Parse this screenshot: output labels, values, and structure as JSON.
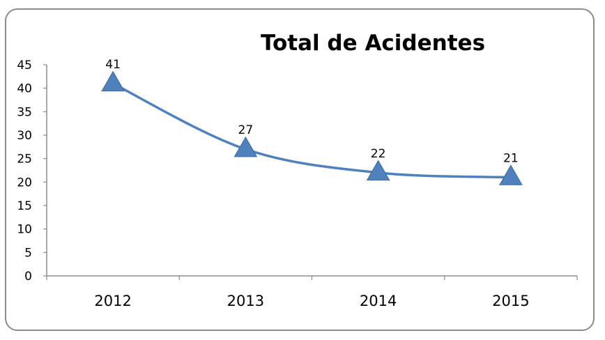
{
  "chart_data": {
    "type": "line",
    "title": "Total de Acidentes",
    "categories": [
      "2012",
      "2013",
      "2014",
      "2015"
    ],
    "series": [
      {
        "values": [
          41,
          27,
          22,
          21
        ],
        "data_labels": [
          "41",
          "27",
          "22",
          "21"
        ],
        "color": "#4f81bd",
        "marker": "triangle",
        "smooth": true
      }
    ],
    "ylim": [
      0,
      45
    ],
    "yticks": [
      "0",
      "5",
      "10",
      "15",
      "20",
      "25",
      "30",
      "35",
      "40",
      "45"
    ],
    "xlabel": "",
    "ylabel": "",
    "grid": false,
    "legend": "none"
  }
}
